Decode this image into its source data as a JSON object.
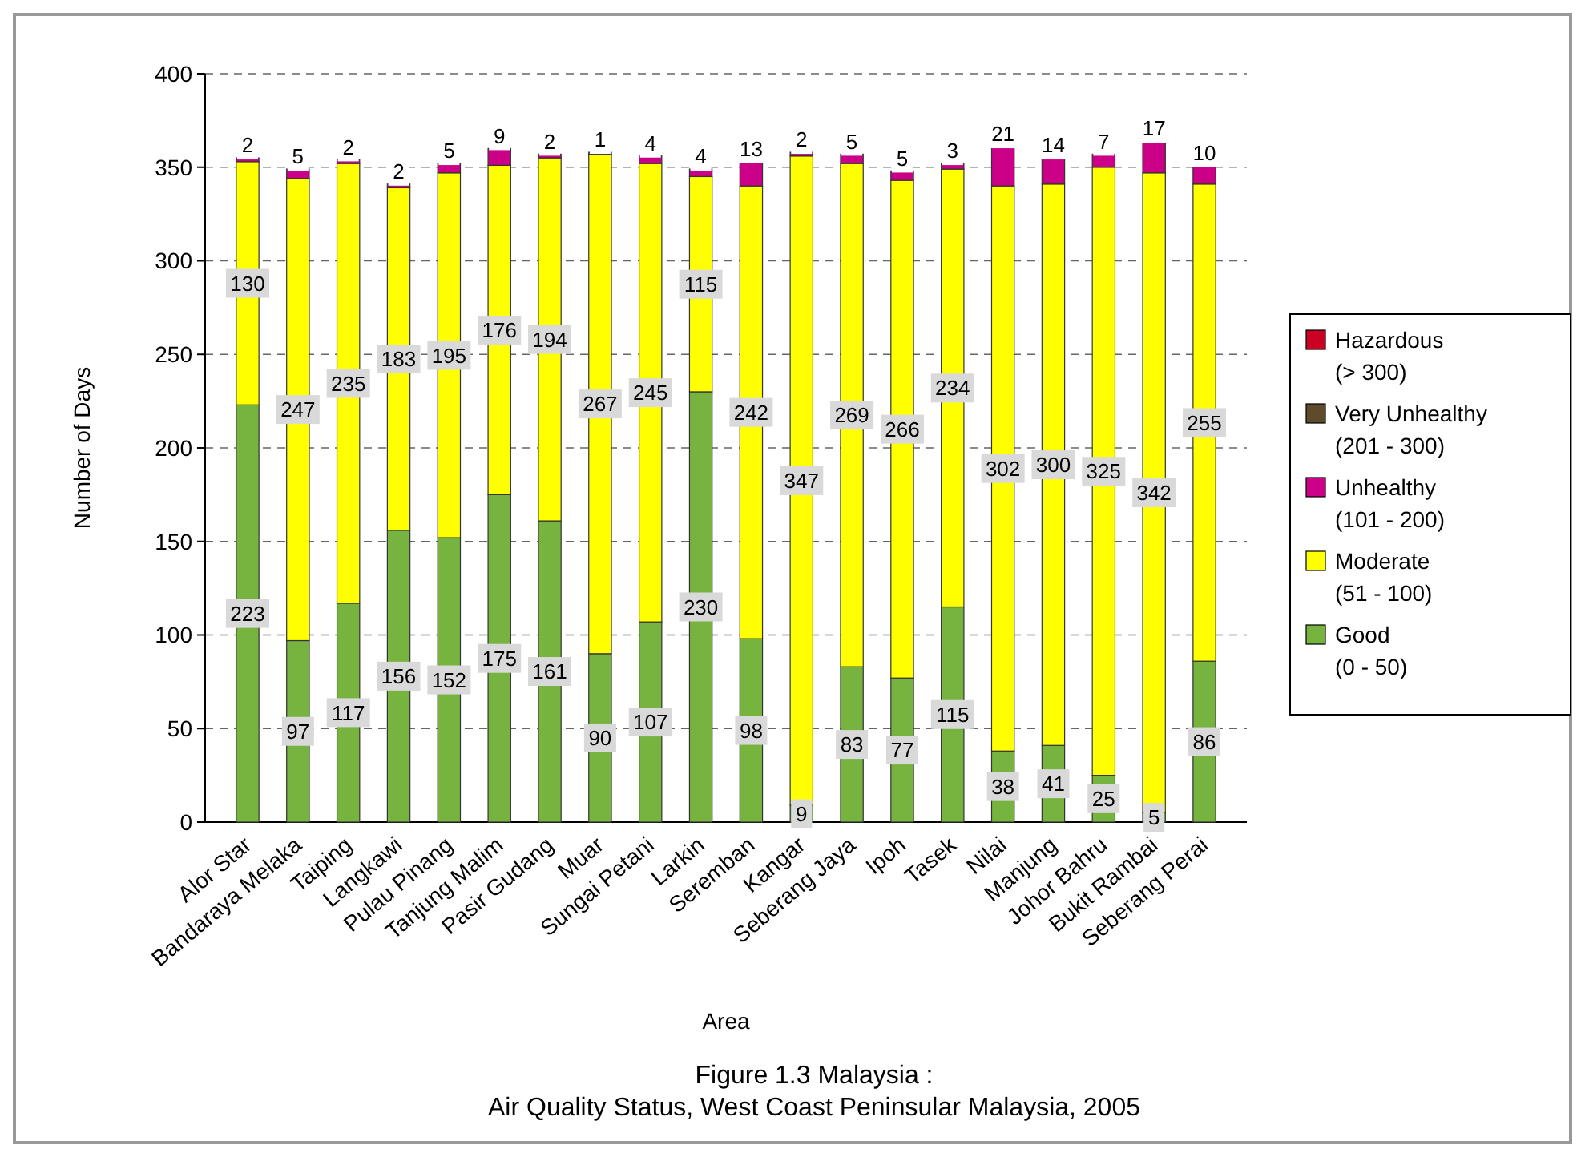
{
  "chart_data": {
    "type": "bar",
    "stacked": true,
    "title": "Figure 1.3 Malaysia :\nAir Quality Status, West Coast Peninsular Malaysia, 2005",
    "xlabel": "Area",
    "ylabel": "Number of Days",
    "categories": [
      "Alor Star",
      "Bandaraya Melaka",
      "Taiping",
      "Langkawi",
      "Pulau Pinang",
      "Tanjung Malim",
      "Pasir Gudang",
      "Muar",
      "Sungai Petani",
      "Larkin",
      "Seremban",
      "Kangar",
      "Seberang Jaya",
      "Ipoh",
      "Tasek",
      "Nilai",
      "Manjung",
      "Johor Bahru",
      "Bukit Rambai",
      "Seberang Perai"
    ],
    "series": [
      {
        "name": "Good\n(0 - 50)",
        "color": "#76b43f",
        "values": [
          223,
          97,
          117,
          156,
          152,
          175,
          161,
          90,
          107,
          230,
          98,
          9,
          83,
          77,
          115,
          38,
          41,
          25,
          5,
          86
        ]
      },
      {
        "name": "Moderate\n(51 - 100)",
        "color": "#ffff00",
        "values": [
          130,
          247,
          235,
          183,
          195,
          176,
          194,
          267,
          245,
          115,
          242,
          347,
          269,
          266,
          234,
          302,
          300,
          325,
          342,
          255
        ]
      },
      {
        "name": "Unhealthy\n(101 - 200)",
        "color": "#cc0088",
        "values": [
          2,
          5,
          2,
          2,
          5,
          9,
          2,
          1,
          4,
          4,
          13,
          2,
          5,
          5,
          3,
          21,
          14,
          7,
          17,
          10
        ]
      },
      {
        "name": "Very Unhealthy\n(201 - 300)",
        "color": "#5e4b2c",
        "values": [
          null,
          null,
          null,
          null,
          null,
          null,
          null,
          null,
          null,
          null,
          null,
          null,
          null,
          null,
          null,
          null,
          null,
          null,
          null,
          null
        ]
      },
      {
        "name": "Hazardous\n(> 300)",
        "color": "#cc0022",
        "values": [
          null,
          null,
          null,
          null,
          null,
          null,
          null,
          null,
          null,
          null,
          null,
          null,
          null,
          null,
          null,
          null,
          null,
          null,
          null,
          null
        ]
      }
    ],
    "ylim": [
      0,
      400
    ],
    "yticks": [
      0,
      50,
      100,
      150,
      200,
      250,
      300,
      350,
      400
    ],
    "grid": "y",
    "legend": "right",
    "data_labels": true
  }
}
